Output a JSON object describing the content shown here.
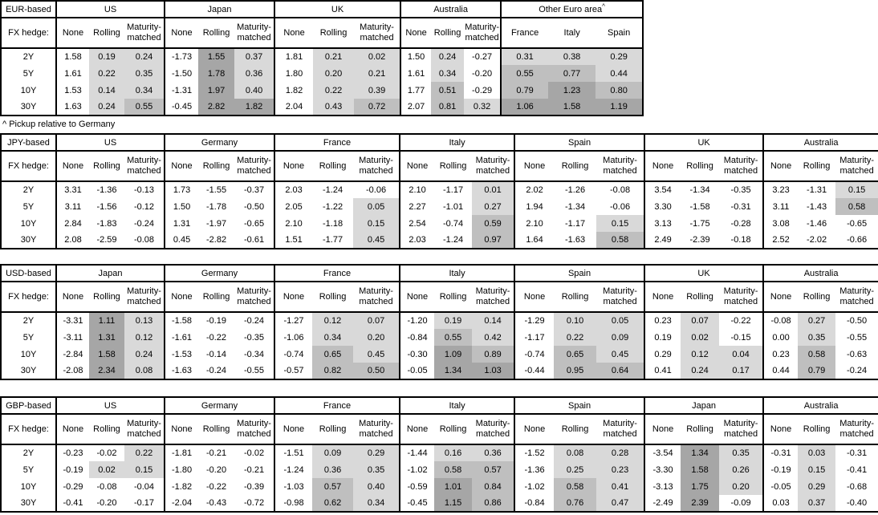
{
  "footnote": "^ Pickup relative to Germany",
  "fx_hedge_label": "FX hedge:",
  "row_labels": [
    "2Y",
    "5Y",
    "10Y",
    "30Y"
  ],
  "hedge_labels": [
    "None",
    "Rolling",
    "Maturity-matched"
  ],
  "shading": {
    "light": "#d9d9d9",
    "medium": "#bfbfbf",
    "dark": "#a6a6a6",
    "none": "#ffffff"
  },
  "tables": [
    {
      "base_label": "EUR-based",
      "groups": [
        {
          "name": "US",
          "shade_all": false,
          "rows": [
            [
              1.58,
              0.19,
              0.24
            ],
            [
              1.61,
              0.22,
              0.35
            ],
            [
              1.53,
              0.14,
              0.34
            ],
            [
              1.63,
              0.24,
              0.55
            ]
          ]
        },
        {
          "name": "Japan",
          "shade_all": false,
          "rows": [
            [
              -1.73,
              1.55,
              0.37
            ],
            [
              -1.5,
              1.78,
              0.36
            ],
            [
              -1.31,
              1.97,
              0.4
            ],
            [
              -0.45,
              2.82,
              1.82
            ]
          ]
        },
        {
          "name": "UK",
          "shade_all": false,
          "rows": [
            [
              1.81,
              0.21,
              0.02
            ],
            [
              1.8,
              0.2,
              0.21
            ],
            [
              1.82,
              0.22,
              0.39
            ],
            [
              2.04,
              0.43,
              0.72
            ]
          ]
        },
        {
          "name": "Australia",
          "shade_all": false,
          "rows": [
            [
              1.5,
              0.24,
              -0.27
            ],
            [
              1.61,
              0.34,
              -0.2
            ],
            [
              1.77,
              0.51,
              -0.29
            ],
            [
              2.07,
              0.81,
              0.32
            ]
          ]
        },
        {
          "name": "Other Euro area",
          "sup": "^",
          "cols": [
            "France",
            "Italy",
            "Spain"
          ],
          "shade_all": true,
          "rows": [
            [
              0.31,
              0.38,
              0.29
            ],
            [
              0.55,
              0.77,
              0.44
            ],
            [
              0.79,
              1.23,
              0.8
            ],
            [
              1.06,
              1.58,
              1.19
            ]
          ]
        }
      ]
    },
    {
      "base_label": "JPY-based",
      "groups": [
        {
          "name": "US",
          "shade_all": false,
          "rows": [
            [
              3.31,
              -1.36,
              -0.13
            ],
            [
              3.11,
              -1.56,
              -0.12
            ],
            [
              2.84,
              -1.83,
              -0.24
            ],
            [
              2.08,
              -2.59,
              -0.08
            ]
          ]
        },
        {
          "name": "Germany",
          "shade_all": false,
          "rows": [
            [
              1.73,
              -1.55,
              -0.37
            ],
            [
              1.5,
              -1.78,
              -0.5
            ],
            [
              1.31,
              -1.97,
              -0.65
            ],
            [
              0.45,
              -2.82,
              -0.61
            ]
          ]
        },
        {
          "name": "France",
          "shade_all": false,
          "rows": [
            [
              2.03,
              -1.24,
              -0.06
            ],
            [
              2.05,
              -1.22,
              0.05
            ],
            [
              2.1,
              -1.18,
              0.15
            ],
            [
              1.51,
              -1.77,
              0.45
            ]
          ]
        },
        {
          "name": "Italy",
          "shade_all": false,
          "rows": [
            [
              2.1,
              -1.17,
              0.01
            ],
            [
              2.27,
              -1.01,
              0.27
            ],
            [
              2.54,
              -0.74,
              0.59
            ],
            [
              2.03,
              -1.24,
              0.97
            ]
          ]
        },
        {
          "name": "Spain",
          "shade_all": false,
          "rows": [
            [
              2.02,
              -1.26,
              -0.08
            ],
            [
              1.94,
              -1.34,
              -0.06
            ],
            [
              2.1,
              -1.17,
              0.15
            ],
            [
              1.64,
              -1.63,
              0.58
            ]
          ]
        },
        {
          "name": "UK",
          "shade_all": false,
          "rows": [
            [
              3.54,
              -1.34,
              -0.35
            ],
            [
              3.3,
              -1.58,
              -0.31
            ],
            [
              3.13,
              -1.75,
              -0.28
            ],
            [
              2.49,
              -2.39,
              -0.18
            ]
          ]
        },
        {
          "name": "Australia",
          "shade_all": false,
          "rows": [
            [
              3.23,
              -1.31,
              0.15
            ],
            [
              3.11,
              -1.43,
              0.58
            ],
            [
              3.08,
              -1.46,
              -0.65
            ],
            [
              2.52,
              -2.02,
              -0.66
            ]
          ]
        }
      ]
    },
    {
      "base_label": "USD-based",
      "groups": [
        {
          "name": "Japan",
          "shade_all": false,
          "rows": [
            [
              -3.31,
              1.11,
              0.13
            ],
            [
              -3.11,
              1.31,
              0.12
            ],
            [
              -2.84,
              1.58,
              0.24
            ],
            [
              -2.08,
              2.34,
              0.08
            ]
          ]
        },
        {
          "name": "Germany",
          "shade_all": false,
          "rows": [
            [
              -1.58,
              -0.19,
              -0.24
            ],
            [
              -1.61,
              -0.22,
              -0.35
            ],
            [
              -1.53,
              -0.14,
              -0.34
            ],
            [
              -1.63,
              -0.24,
              -0.55
            ]
          ]
        },
        {
          "name": "France",
          "shade_all": false,
          "rows": [
            [
              -1.27,
              0.12,
              0.07
            ],
            [
              -1.06,
              0.34,
              0.2
            ],
            [
              -0.74,
              0.65,
              0.45
            ],
            [
              -0.57,
              0.82,
              0.5
            ]
          ]
        },
        {
          "name": "Italy",
          "shade_all": false,
          "rows": [
            [
              -1.2,
              0.19,
              0.14
            ],
            [
              -0.84,
              0.55,
              0.42
            ],
            [
              -0.3,
              1.09,
              0.89
            ],
            [
              -0.05,
              1.34,
              1.03
            ]
          ]
        },
        {
          "name": "Spain",
          "shade_all": false,
          "rows": [
            [
              -1.29,
              0.1,
              0.05
            ],
            [
              -1.17,
              0.22,
              0.09
            ],
            [
              -0.74,
              0.65,
              0.45
            ],
            [
              -0.44,
              0.95,
              0.64
            ]
          ]
        },
        {
          "name": "UK",
          "shade_all": false,
          "rows": [
            [
              0.23,
              0.07,
              -0.22
            ],
            [
              0.19,
              0.02,
              -0.15
            ],
            [
              0.29,
              0.12,
              0.04
            ],
            [
              0.41,
              0.24,
              0.17
            ]
          ]
        },
        {
          "name": "Australia",
          "shade_all": false,
          "rows": [
            [
              -0.08,
              0.27,
              -0.5
            ],
            [
              0.0,
              0.35,
              -0.55
            ],
            [
              0.23,
              0.58,
              -0.63
            ],
            [
              0.44,
              0.79,
              -0.24
            ]
          ]
        }
      ]
    },
    {
      "base_label": "GBP-based",
      "groups": [
        {
          "name": "US",
          "shade_all": false,
          "rows": [
            [
              -0.23,
              -0.02,
              0.22
            ],
            [
              -0.19,
              0.02,
              0.15
            ],
            [
              -0.29,
              -0.08,
              -0.04
            ],
            [
              -0.41,
              -0.2,
              -0.17
            ]
          ]
        },
        {
          "name": "Germany",
          "shade_all": false,
          "rows": [
            [
              -1.81,
              -0.21,
              -0.02
            ],
            [
              -1.8,
              -0.2,
              -0.21
            ],
            [
              -1.82,
              -0.22,
              -0.39
            ],
            [
              -2.04,
              -0.43,
              -0.72
            ]
          ]
        },
        {
          "name": "France",
          "shade_all": false,
          "rows": [
            [
              -1.51,
              0.09,
              0.29
            ],
            [
              -1.24,
              0.36,
              0.35
            ],
            [
              -1.03,
              0.57,
              0.4
            ],
            [
              -0.98,
              0.62,
              0.34
            ]
          ]
        },
        {
          "name": "Italy",
          "shade_all": false,
          "rows": [
            [
              -1.44,
              0.16,
              0.36
            ],
            [
              -1.02,
              0.58,
              0.57
            ],
            [
              -0.59,
              1.01,
              0.84
            ],
            [
              -0.45,
              1.15,
              0.86
            ]
          ]
        },
        {
          "name": "Spain",
          "shade_all": false,
          "rows": [
            [
              -1.52,
              0.08,
              0.28
            ],
            [
              -1.36,
              0.25,
              0.23
            ],
            [
              -1.02,
              0.58,
              0.41
            ],
            [
              -0.84,
              0.76,
              0.47
            ]
          ]
        },
        {
          "name": "Japan",
          "shade_all": false,
          "rows": [
            [
              -3.54,
              1.34,
              0.35
            ],
            [
              -3.3,
              1.58,
              0.26
            ],
            [
              -3.13,
              1.75,
              0.2
            ],
            [
              -2.49,
              2.39,
              -0.09
            ]
          ]
        },
        {
          "name": "Australia",
          "shade_all": false,
          "rows": [
            [
              -0.31,
              0.03,
              -0.31
            ],
            [
              -0.19,
              0.15,
              -0.41
            ],
            [
              -0.05,
              0.29,
              -0.68
            ],
            [
              0.03,
              0.37,
              -0.4
            ]
          ]
        }
      ]
    }
  ]
}
